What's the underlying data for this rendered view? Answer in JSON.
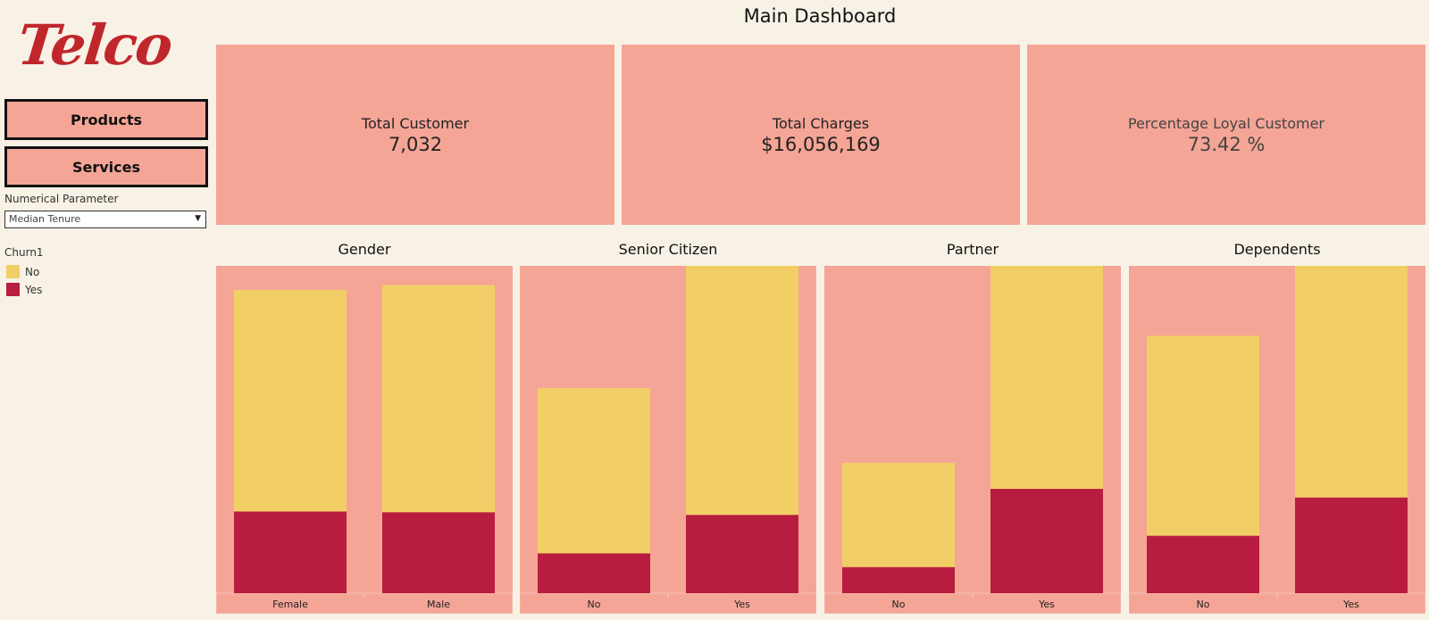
{
  "brand": {
    "logo_text": "Telco"
  },
  "nav": {
    "products_label": "Products",
    "services_label": "Services"
  },
  "parameter": {
    "label": "Numerical Parameter",
    "selected": "Median Tenure"
  },
  "legend": {
    "title": "Churn1",
    "items": [
      {
        "label": "No",
        "color": "#f2cf66"
      },
      {
        "label": "Yes",
        "color": "#b81d3f"
      }
    ]
  },
  "dashboard": {
    "title": "Main Dashboard"
  },
  "kpis": [
    {
      "label": "Total Customer",
      "value": "7,032"
    },
    {
      "label": "Total Charges",
      "value": "$16,056,169"
    },
    {
      "label": "Percentage Loyal Customer",
      "value": "73.42 %"
    }
  ],
  "colors": {
    "panel": "#f4a596",
    "background": "#f8f2e6",
    "no": "#f2cf66",
    "yes": "#b81d3f"
  },
  "chart_data": [
    {
      "type": "bar",
      "title": "Gender",
      "categories": [
        "Female",
        "Male"
      ],
      "series": [
        {
          "name": "No",
          "values": [
            2549,
            2614
          ]
        },
        {
          "name": "Yes",
          "values": [
            939,
            930
          ]
        }
      ]
    },
    {
      "type": "bar",
      "title": "Senior Citizen",
      "categories": [
        "No",
        "Yes"
      ],
      "series": [
        {
          "name": "No",
          "values": [
            1900,
            3250
          ]
        },
        {
          "name": "Yes",
          "values": [
            458,
            900
          ]
        }
      ]
    },
    {
      "type": "bar",
      "title": "Partner",
      "categories": [
        "No",
        "Yes"
      ],
      "series": [
        {
          "name": "No",
          "values": [
            1200,
            2900
          ]
        },
        {
          "name": "Yes",
          "values": [
            300,
            1200
          ]
        }
      ]
    },
    {
      "type": "bar",
      "title": "Dependents",
      "categories": [
        "No",
        "Yes"
      ],
      "series": [
        {
          "name": "No",
          "values": [
            2300,
            2970
          ]
        },
        {
          "name": "Yes",
          "values": [
            660,
            1100
          ]
        }
      ]
    }
  ]
}
